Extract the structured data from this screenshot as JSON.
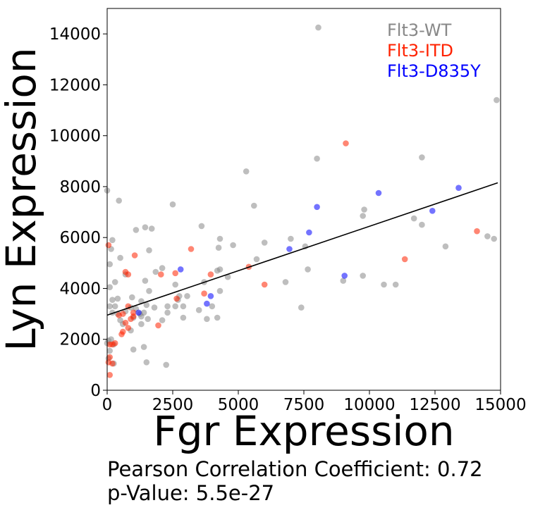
{
  "chart_data": {
    "type": "scatter",
    "xlabel": "Fgr Expression",
    "ylabel": "Lyn Expression",
    "xlim": [
      0,
      15000
    ],
    "ylim": [
      0,
      15000
    ],
    "xticks": [
      "0",
      "2500",
      "5000",
      "7500",
      "10000",
      "12500",
      "15000"
    ],
    "yticks": [
      "0",
      "2000",
      "4000",
      "6000",
      "8000",
      "10000",
      "12000",
      "14000"
    ],
    "legend_position": "top-right",
    "series": [
      {
        "name": "Flt3-WT",
        "color": "#888888",
        "points": [
          [
            8050,
            14250
          ],
          [
            14850,
            11400
          ],
          [
            12000,
            9150
          ],
          [
            8000,
            9100
          ],
          [
            5300,
            8600
          ],
          [
            9800,
            7100
          ],
          [
            9750,
            6850
          ],
          [
            11700,
            6750
          ],
          [
            12000,
            6500
          ],
          [
            5600,
            7250
          ],
          [
            2500,
            7300
          ],
          [
            450,
            7450
          ],
          [
            0,
            7850
          ],
          [
            3600,
            6450
          ],
          [
            1450,
            6400
          ],
          [
            1700,
            6350
          ],
          [
            1100,
            6300
          ],
          [
            4300,
            5950
          ],
          [
            7000,
            5950
          ],
          [
            14500,
            6050
          ],
          [
            14750,
            5950
          ],
          [
            12900,
            5650
          ],
          [
            200,
            5900
          ],
          [
            150,
            5550
          ],
          [
            4250,
            5600
          ],
          [
            4800,
            5700
          ],
          [
            6000,
            5800
          ],
          [
            7550,
            5650
          ],
          [
            1600,
            5500
          ],
          [
            5700,
            5150
          ],
          [
            500,
            5200
          ],
          [
            100,
            4950
          ],
          [
            1850,
            4650
          ],
          [
            2100,
            4800
          ],
          [
            700,
            4550
          ],
          [
            3700,
            4250
          ],
          [
            4200,
            4700
          ],
          [
            4300,
            4750
          ],
          [
            7650,
            4750
          ],
          [
            300,
            4250
          ],
          [
            1450,
            4300
          ],
          [
            2600,
            4150
          ],
          [
            4600,
            4450
          ],
          [
            6800,
            4250
          ],
          [
            9750,
            4500
          ],
          [
            9000,
            4300
          ],
          [
            10550,
            4150
          ],
          [
            11000,
            4150
          ],
          [
            100,
            4050
          ],
          [
            1600,
            3900
          ],
          [
            2750,
            3700
          ],
          [
            4300,
            3900
          ],
          [
            950,
            3650
          ],
          [
            400,
            3600
          ],
          [
            200,
            3550
          ],
          [
            1300,
            3500
          ],
          [
            1500,
            3350
          ],
          [
            3050,
            3700
          ],
          [
            2700,
            3550
          ],
          [
            2300,
            3300
          ],
          [
            2600,
            3300
          ],
          [
            2900,
            3300
          ],
          [
            900,
            3250
          ],
          [
            300,
            3300
          ],
          [
            100,
            3300
          ],
          [
            1800,
            3250
          ],
          [
            1100,
            3200
          ],
          [
            200,
            3050
          ],
          [
            400,
            3000
          ],
          [
            700,
            3100
          ],
          [
            1250,
            3000
          ],
          [
            1400,
            3050
          ],
          [
            2300,
            3050
          ],
          [
            4000,
            3300
          ],
          [
            3500,
            3150
          ],
          [
            7400,
            3250
          ],
          [
            500,
            2750
          ],
          [
            1300,
            2900
          ],
          [
            1000,
            2850
          ],
          [
            1550,
            2800
          ],
          [
            2100,
            2750
          ],
          [
            2900,
            2850
          ],
          [
            3800,
            2800
          ],
          [
            4200,
            2850
          ],
          [
            1300,
            2600
          ],
          [
            900,
            2350
          ],
          [
            600,
            2600
          ],
          [
            150,
            2000
          ],
          [
            0,
            1850
          ],
          [
            250,
            1800
          ],
          [
            100,
            1550
          ],
          [
            50,
            1250
          ],
          [
            1000,
            1600
          ],
          [
            1400,
            1700
          ],
          [
            250,
            1050
          ],
          [
            1500,
            1100
          ],
          [
            2250,
            1000
          ],
          [
            50,
            1950
          ]
        ]
      },
      {
        "name": "Flt3-ITD",
        "color": "#ff2200",
        "points": [
          [
            9100,
            9700
          ],
          [
            14100,
            6250
          ],
          [
            11350,
            5150
          ],
          [
            50,
            5700
          ],
          [
            3200,
            5550
          ],
          [
            1050,
            5300
          ],
          [
            5400,
            4850
          ],
          [
            3950,
            4550
          ],
          [
            2600,
            4600
          ],
          [
            2050,
            4550
          ],
          [
            800,
            4550
          ],
          [
            700,
            4650
          ],
          [
            6000,
            4150
          ],
          [
            3700,
            3800
          ],
          [
            2650,
            3600
          ],
          [
            800,
            3300
          ],
          [
            1000,
            3050
          ],
          [
            600,
            3000
          ],
          [
            450,
            2950
          ],
          [
            900,
            2800
          ],
          [
            1000,
            2900
          ],
          [
            700,
            2650
          ],
          [
            800,
            2450
          ],
          [
            600,
            2300
          ],
          [
            550,
            2200
          ],
          [
            1950,
            2550
          ],
          [
            100,
            1800
          ],
          [
            200,
            1800
          ],
          [
            300,
            1850
          ],
          [
            100,
            1300
          ],
          [
            200,
            1050
          ],
          [
            50,
            1100
          ],
          [
            100,
            600
          ]
        ]
      },
      {
        "name": "Flt3-D835Y",
        "color": "#0000ff",
        "points": [
          [
            13400,
            7950
          ],
          [
            10350,
            7750
          ],
          [
            8000,
            7200
          ],
          [
            12400,
            7050
          ],
          [
            7700,
            6200
          ],
          [
            6950,
            5550
          ],
          [
            2800,
            4750
          ],
          [
            9050,
            4500
          ],
          [
            3950,
            3700
          ],
          [
            3800,
            3400
          ],
          [
            1200,
            3050
          ]
        ]
      }
    ],
    "regression_line": {
      "x": [
        0,
        15000
      ],
      "y": [
        2950,
        8150
      ],
      "color": "#000000"
    }
  },
  "stats": {
    "pearson": "Pearson Correlation Coefficient: 0.72",
    "pvalue": "p-Value: 5.5e-27"
  }
}
